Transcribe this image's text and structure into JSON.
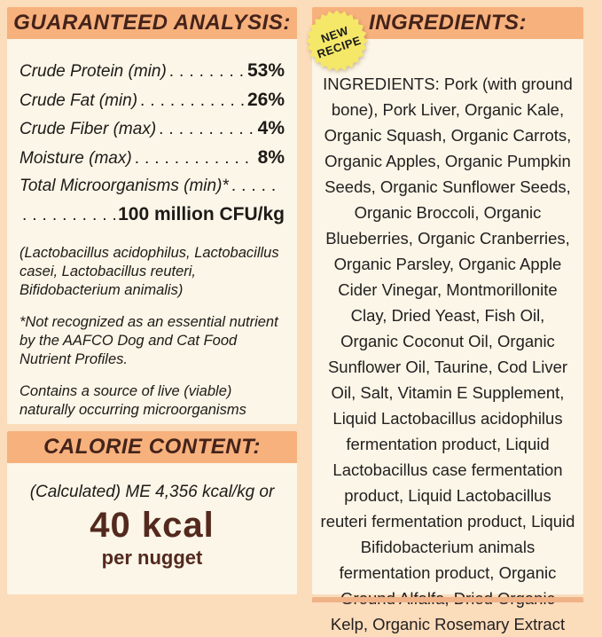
{
  "colors": {
    "page_bg": "#FBDCBB",
    "header_bar": "#F7B17D",
    "panel_bg": "#FBF6E8",
    "header_text": "#44231A",
    "kcal_brown": "#53291E",
    "badge_yellow": "#F5E869"
  },
  "guaranteed_analysis": {
    "title": "GUARANTEED ANALYSIS:",
    "rows": [
      {
        "label": "Crude Protein (min)",
        "value": "53%"
      },
      {
        "label": "Crude Fat (min)",
        "value": "26%"
      },
      {
        "label": "Crude Fiber (max)",
        "value": "4%"
      },
      {
        "label": "Moisture (max)",
        "value": "8%"
      },
      {
        "label": "Total Microorganisms (min)*",
        "value": ""
      },
      {
        "label": "",
        "value": "100 million CFU/kg"
      }
    ],
    "notes": [
      "(Lactobacillus acidophilus, Lactobacillus casei, Lactobacillus reuteri, Bifidobacterium animalis)",
      "*Not recognized as an essential nutrient by the AAFCO Dog and Cat Food Nutrient Profiles.",
      "Contains a source of live (viable) naturally occurring microorganisms"
    ]
  },
  "calorie_content": {
    "title": "CALORIE CONTENT:",
    "intro": "(Calculated) ME 4,356 kcal/kg or",
    "kcal": "40 kcal",
    "unit": "per nugget"
  },
  "ingredients": {
    "title": "INGREDIENTS:",
    "badge": {
      "line1": "NEW",
      "line2": "RECIPE"
    },
    "text": "INGREDIENTS: Pork (with ground bone), Pork Liver, Organic Kale, Organic Squash, Organic Carrots, Organic Apples, Organic Pumpkin Seeds, Organic Sunflower Seeds, Organic Broccoli, Organic Blueberries, Organic Cranberries, Organic Parsley, Organic Apple Cider Vinegar, Montmorillonite Clay, Dried Yeast, Fish Oil, Organic Coconut Oil, Organic Sunflower Oil, Taurine, Cod Liver Oil, Salt, Vitamin E Supplement, Liquid Lactobacillus acidophilus fermentation product, Liquid Lactobacillus case fermentation product, Liquid Lactobacillus reuteri fermentation product, Liquid Bifidobacterium animals fermentation product, Organic Ground Alfalfa, Dried Organic Kelp, Organic Rosemary Extract"
  }
}
